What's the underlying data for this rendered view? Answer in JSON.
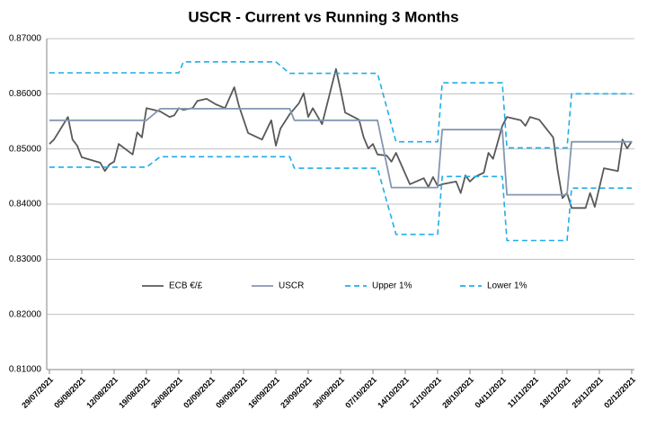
{
  "chart_data": {
    "type": "line",
    "title": "USCR - Current vs Running 3 Months",
    "ylim": [
      0.81,
      0.87
    ],
    "yticks": [
      {
        "value": 0.81,
        "label": "0.81000"
      },
      {
        "value": 0.82,
        "label": "0.82000"
      },
      {
        "value": 0.83,
        "label": "0.83000"
      },
      {
        "value": 0.84,
        "label": "0.84000"
      },
      {
        "value": 0.85,
        "label": "0.85000"
      },
      {
        "value": 0.86,
        "label": "0.86000"
      },
      {
        "value": 0.87,
        "label": "0.87000"
      }
    ],
    "xlim": [
      "29/07/2021",
      "02/12/2021"
    ],
    "xticks": [
      "29/07/2021",
      "05/08/2021",
      "12/08/2021",
      "19/08/2021",
      "26/08/2021",
      "02/09/2021",
      "09/09/2021",
      "16/09/2021",
      "23/09/2021",
      "30/09/2021",
      "07/10/2021",
      "14/10/2021",
      "21/10/2021",
      "28/10/2021",
      "04/11/2021",
      "11/11/2021",
      "18/11/2021",
      "25/11/2021",
      "02/12/2021"
    ],
    "grid": true,
    "legend": "center",
    "series": [
      {
        "name": "ECB €/£",
        "color": "#595959",
        "dash": false,
        "x": [
          "29/07/2021",
          "30/07/2021",
          "02/08/2021",
          "03/08/2021",
          "04/08/2021",
          "05/08/2021",
          "09/08/2021",
          "10/08/2021",
          "11/08/2021",
          "12/08/2021",
          "13/08/2021",
          "16/08/2021",
          "17/08/2021",
          "18/08/2021",
          "19/08/2021",
          "22/08/2021",
          "24/08/2021",
          "25/08/2021",
          "26/08/2021",
          "27/08/2021",
          "29/08/2021",
          "30/08/2021",
          "01/09/2021",
          "03/09/2021",
          "05/09/2021",
          "07/09/2021",
          "08/09/2021",
          "10/09/2021",
          "13/09/2021",
          "15/09/2021",
          "16/09/2021",
          "17/09/2021",
          "19/09/2021",
          "21/09/2021",
          "22/09/2021",
          "23/09/2021",
          "24/09/2021",
          "26/09/2021",
          "29/09/2021",
          "30/09/2021",
          "01/10/2021",
          "04/10/2021",
          "05/10/2021",
          "06/10/2021",
          "07/10/2021",
          "08/10/2021",
          "10/10/2021",
          "11/10/2021",
          "12/10/2021",
          "15/10/2021",
          "18/10/2021",
          "19/10/2021",
          "20/10/2021",
          "21/10/2021",
          "22/10/2021",
          "25/10/2021",
          "26/10/2021",
          "27/10/2021",
          "28/10/2021",
          "29/10/2021",
          "31/10/2021",
          "01/11/2021",
          "02/11/2021",
          "04/11/2021",
          "05/11/2021",
          "08/11/2021",
          "09/11/2021",
          "10/11/2021",
          "12/11/2021",
          "15/11/2021",
          "16/11/2021",
          "17/11/2021",
          "18/11/2021",
          "19/11/2021",
          "22/11/2021",
          "23/11/2021",
          "24/11/2021",
          "26/11/2021",
          "29/11/2021",
          "30/11/2021",
          "01/12/2021",
          "02/12/2021"
        ],
        "values": [
          0.8509,
          0.8517,
          0.8558,
          0.8517,
          0.8506,
          0.8485,
          0.8475,
          0.846,
          0.8472,
          0.8477,
          0.8509,
          0.849,
          0.853,
          0.8521,
          0.8574,
          0.8568,
          0.8558,
          0.8561,
          0.8574,
          0.8571,
          0.8574,
          0.8587,
          0.8591,
          0.8581,
          0.8574,
          0.8612,
          0.8578,
          0.8529,
          0.8517,
          0.8552,
          0.8506,
          0.8537,
          0.8563,
          0.8583,
          0.8601,
          0.8558,
          0.8574,
          0.8545,
          0.8645,
          0.8607,
          0.8566,
          0.8553,
          0.8521,
          0.8501,
          0.8509,
          0.849,
          0.8488,
          0.8477,
          0.8493,
          0.8436,
          0.8447,
          0.8431,
          0.8449,
          0.8433,
          0.8436,
          0.8441,
          0.842,
          0.8452,
          0.8441,
          0.8449,
          0.8457,
          0.8493,
          0.8482,
          0.8542,
          0.8558,
          0.8552,
          0.8542,
          0.8558,
          0.8553,
          0.8521,
          0.846,
          0.8411,
          0.842,
          0.8393,
          0.8393,
          0.842,
          0.8395,
          0.8465,
          0.846,
          0.8517,
          0.8501,
          0.8514
        ]
      },
      {
        "name": "USCR",
        "color": "#8497b0",
        "dash": false,
        "x": [
          "29/07/2021",
          "19/08/2021",
          "22/08/2021",
          "19/09/2021",
          "20/09/2021",
          "08/10/2021",
          "11/10/2021",
          "21/10/2021",
          "22/10/2021",
          "04/11/2021",
          "05/11/2021",
          "18/11/2021",
          "19/11/2021",
          "02/12/2021"
        ],
        "values": [
          0.8552,
          0.8552,
          0.8573,
          0.8573,
          0.8552,
          0.8552,
          0.843,
          0.843,
          0.8535,
          0.8535,
          0.8417,
          0.8417,
          0.8513,
          0.8513
        ]
      },
      {
        "name": "Upper 1%",
        "color": "#1eaee8",
        "dash": true,
        "x": [
          "29/07/2021",
          "26/08/2021",
          "27/08/2021",
          "16/09/2021",
          "19/09/2021",
          "08/10/2021",
          "12/10/2021",
          "21/10/2021",
          "22/10/2021",
          "04/11/2021",
          "05/11/2021",
          "18/11/2021",
          "19/11/2021",
          "02/12/2021"
        ],
        "values": [
          0.8638,
          0.8638,
          0.8658,
          0.8658,
          0.8637,
          0.8637,
          0.8513,
          0.8513,
          0.862,
          0.862,
          0.8502,
          0.8502,
          0.86,
          0.86
        ]
      },
      {
        "name": "Lower 1%",
        "color": "#1eaee8",
        "dash": true,
        "x": [
          "29/07/2021",
          "19/08/2021",
          "22/08/2021",
          "19/09/2021",
          "20/09/2021",
          "08/10/2021",
          "12/10/2021",
          "21/10/2021",
          "22/10/2021",
          "04/11/2021",
          "05/11/2021",
          "18/11/2021",
          "19/11/2021",
          "02/12/2021"
        ],
        "values": [
          0.8467,
          0.8467,
          0.8486,
          0.8486,
          0.8465,
          0.8465,
          0.8345,
          0.8345,
          0.845,
          0.845,
          0.8334,
          0.8334,
          0.8429,
          0.8429
        ]
      }
    ]
  }
}
